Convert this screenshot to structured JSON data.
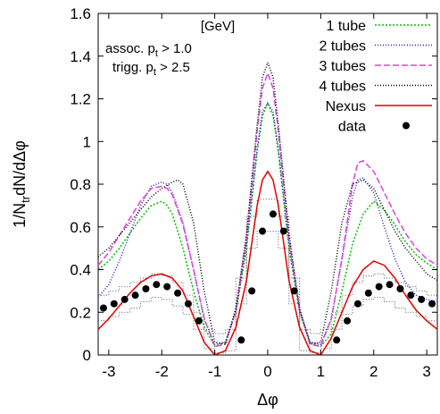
{
  "chart_data": {
    "type": "line",
    "xlabel": "Δφ",
    "ylabel": "1/N_tr dN/dΔφ",
    "xlim": [
      -3.2,
      3.2
    ],
    "ylim": [
      0,
      1.6
    ],
    "xticks": [
      -3,
      -2,
      -1,
      0,
      1,
      2,
      3
    ],
    "xtick_labels": [
      "-3",
      "-2",
      "-1",
      "0",
      "1",
      "2",
      "3"
    ],
    "yticks": [
      0,
      0.2,
      0.4,
      0.6,
      0.8,
      1,
      1.2,
      1.4,
      1.6
    ],
    "ytick_labels": [
      "0",
      "0.2",
      "0.4",
      "0.6",
      "0.8",
      "1",
      "1.2",
      "1.4",
      "1.6"
    ],
    "grid": false,
    "legend_position": "top-right",
    "annotations": {
      "units": "[GeV]",
      "assoc_prefix": "assoc. p",
      "assoc_suffix": " > 1.0",
      "trigg_prefix": "trigg. p",
      "trigg_suffix": " > 2.5",
      "subscript": "t"
    },
    "series": [
      {
        "name": "1 tube",
        "color": "#00c000",
        "dash": "2,2",
        "x": [
          -3.2,
          -3.0,
          -2.8,
          -2.6,
          -2.4,
          -2.2,
          -2.0,
          -1.9,
          -1.8,
          -1.6,
          -1.4,
          -1.2,
          -1.0,
          -0.8,
          -0.6,
          -0.4,
          -0.2,
          -0.1,
          0.0,
          0.1,
          0.2,
          0.4,
          0.6,
          0.8,
          1.0,
          1.2,
          1.4,
          1.6,
          1.8,
          2.0,
          2.2,
          2.4,
          2.6,
          2.8,
          3.0,
          3.2
        ],
        "y": [
          0.4,
          0.44,
          0.5,
          0.57,
          0.64,
          0.7,
          0.72,
          0.7,
          0.66,
          0.5,
          0.3,
          0.13,
          0.04,
          0.06,
          0.2,
          0.5,
          0.95,
          1.12,
          1.18,
          1.12,
          0.95,
          0.5,
          0.2,
          0.06,
          0.04,
          0.1,
          0.3,
          0.52,
          0.66,
          0.72,
          0.68,
          0.61,
          0.53,
          0.47,
          0.43,
          0.4
        ]
      },
      {
        "name": "2 tubes",
        "color": "#2020c0",
        "dash": "1,2",
        "x": [
          -3.2,
          -3.0,
          -2.8,
          -2.6,
          -2.4,
          -2.2,
          -2.0,
          -1.9,
          -1.8,
          -1.6,
          -1.4,
          -1.2,
          -1.0,
          -0.8,
          -0.6,
          -0.4,
          -0.2,
          -0.1,
          0.0,
          0.1,
          0.2,
          0.4,
          0.6,
          0.8,
          1.0,
          1.2,
          1.4,
          1.6,
          1.7,
          1.8,
          2.0,
          2.2,
          2.4,
          2.6,
          2.8,
          3.0,
          3.2
        ],
        "y": [
          0.27,
          0.33,
          0.44,
          0.57,
          0.7,
          0.79,
          0.81,
          0.8,
          0.76,
          0.62,
          0.4,
          0.17,
          0.05,
          0.06,
          0.21,
          0.52,
          0.97,
          1.14,
          1.18,
          1.14,
          0.97,
          0.52,
          0.21,
          0.06,
          0.05,
          0.17,
          0.45,
          0.74,
          0.82,
          0.83,
          0.76,
          0.6,
          0.45,
          0.34,
          0.28,
          0.26,
          0.25
        ]
      },
      {
        "name": "3 tubes",
        "color": "#e040e0",
        "dash": "7,3",
        "x": [
          -3.2,
          -3.0,
          -2.8,
          -2.6,
          -2.4,
          -2.2,
          -2.0,
          -1.9,
          -1.8,
          -1.6,
          -1.4,
          -1.2,
          -1.0,
          -0.8,
          -0.6,
          -0.4,
          -0.2,
          -0.1,
          0.0,
          0.1,
          0.2,
          0.4,
          0.6,
          0.8,
          1.0,
          1.2,
          1.4,
          1.6,
          1.7,
          1.8,
          2.0,
          2.2,
          2.4,
          2.6,
          2.8,
          3.0,
          3.2
        ],
        "y": [
          0.42,
          0.48,
          0.56,
          0.64,
          0.72,
          0.78,
          0.79,
          0.78,
          0.75,
          0.61,
          0.4,
          0.17,
          0.04,
          0.05,
          0.21,
          0.55,
          1.05,
          1.25,
          1.32,
          1.25,
          1.05,
          0.55,
          0.21,
          0.05,
          0.04,
          0.17,
          0.45,
          0.8,
          0.9,
          0.91,
          0.86,
          0.76,
          0.66,
          0.57,
          0.5,
          0.45,
          0.42
        ]
      },
      {
        "name": "4 tubes",
        "color": "#000000",
        "dash": "1,2",
        "x": [
          -3.2,
          -3.0,
          -2.8,
          -2.6,
          -2.4,
          -2.2,
          -2.0,
          -1.8,
          -1.7,
          -1.6,
          -1.4,
          -1.2,
          -1.0,
          -0.8,
          -0.6,
          -0.4,
          -0.2,
          -0.1,
          0.0,
          0.1,
          0.2,
          0.4,
          0.6,
          0.8,
          1.0,
          1.2,
          1.4,
          1.6,
          1.8,
          2.0,
          2.2,
          2.4,
          2.6,
          2.8,
          3.0,
          3.2
        ],
        "y": [
          0.46,
          0.5,
          0.56,
          0.62,
          0.68,
          0.74,
          0.78,
          0.81,
          0.82,
          0.8,
          0.62,
          0.3,
          0.06,
          0.05,
          0.22,
          0.57,
          1.08,
          1.3,
          1.37,
          1.3,
          1.08,
          0.57,
          0.22,
          0.05,
          0.06,
          0.3,
          0.62,
          0.8,
          0.82,
          0.78,
          0.68,
          0.58,
          0.5,
          0.44,
          0.38,
          0.35
        ]
      },
      {
        "name": "Nexus",
        "color": "#e00000",
        "dash": "",
        "x": [
          -3.2,
          -3.0,
          -2.8,
          -2.6,
          -2.4,
          -2.2,
          -2.0,
          -1.8,
          -1.6,
          -1.4,
          -1.2,
          -1.0,
          -0.8,
          -0.6,
          -0.4,
          -0.2,
          -0.1,
          0.0,
          0.1,
          0.2,
          0.4,
          0.6,
          0.8,
          1.0,
          1.2,
          1.4,
          1.6,
          1.8,
          2.0,
          2.2,
          2.4,
          2.6,
          2.8,
          3.0,
          3.2
        ],
        "y": [
          0.12,
          0.17,
          0.23,
          0.29,
          0.34,
          0.37,
          0.38,
          0.36,
          0.3,
          0.18,
          0.06,
          0.0,
          0.02,
          0.13,
          0.35,
          0.7,
          0.82,
          0.86,
          0.82,
          0.7,
          0.35,
          0.13,
          0.02,
          0.0,
          0.08,
          0.2,
          0.32,
          0.4,
          0.44,
          0.42,
          0.36,
          0.28,
          0.21,
          0.16,
          0.12
        ]
      }
    ],
    "data": {
      "name": "data",
      "color": "#000000",
      "x": [
        -3.1,
        -2.9,
        -2.7,
        -2.5,
        -2.3,
        -2.1,
        -1.9,
        -1.7,
        -1.5,
        -1.3,
        -0.5,
        -0.3,
        -0.1,
        0.1,
        0.3,
        0.5,
        1.3,
        1.5,
        1.7,
        1.9,
        2.1,
        2.3,
        2.5,
        2.7,
        2.9,
        3.1
      ],
      "y": [
        0.22,
        0.24,
        0.26,
        0.28,
        0.31,
        0.33,
        0.32,
        0.29,
        0.24,
        0.16,
        0.07,
        0.3,
        0.58,
        0.66,
        0.58,
        0.3,
        0.07,
        0.16,
        0.24,
        0.29,
        0.32,
        0.33,
        0.31,
        0.28,
        0.26,
        0.24
      ],
      "step_x": [
        -3.2,
        -3.0,
        -2.8,
        -2.6,
        -2.4,
        -2.2,
        -2.0,
        -1.8,
        -1.6,
        -1.4,
        -1.2,
        -1.0,
        -0.8,
        -0.6,
        -0.4,
        -0.2,
        0.0,
        0.2,
        0.4,
        0.6,
        0.8,
        1.0,
        1.2,
        1.4,
        1.6,
        1.8,
        2.0,
        2.2,
        2.4,
        2.6,
        2.8,
        3.0,
        3.2
      ],
      "step_upper": [
        0.28,
        0.3,
        0.32,
        0.34,
        0.36,
        0.38,
        0.37,
        0.34,
        0.28,
        0.2,
        0.12,
        0.1,
        0.12,
        0.36,
        0.65,
        0.73,
        0.73,
        0.65,
        0.36,
        0.12,
        0.1,
        0.12,
        0.2,
        0.28,
        0.34,
        0.37,
        0.38,
        0.36,
        0.34,
        0.32,
        0.3,
        0.28
      ],
      "step_lower": [
        0.16,
        0.18,
        0.2,
        0.22,
        0.25,
        0.27,
        0.26,
        0.23,
        0.19,
        0.12,
        0.03,
        0.01,
        0.02,
        0.24,
        0.5,
        0.58,
        0.58,
        0.5,
        0.24,
        0.02,
        0.01,
        0.03,
        0.12,
        0.19,
        0.23,
        0.26,
        0.27,
        0.25,
        0.22,
        0.2,
        0.18,
        0.16
      ]
    }
  }
}
